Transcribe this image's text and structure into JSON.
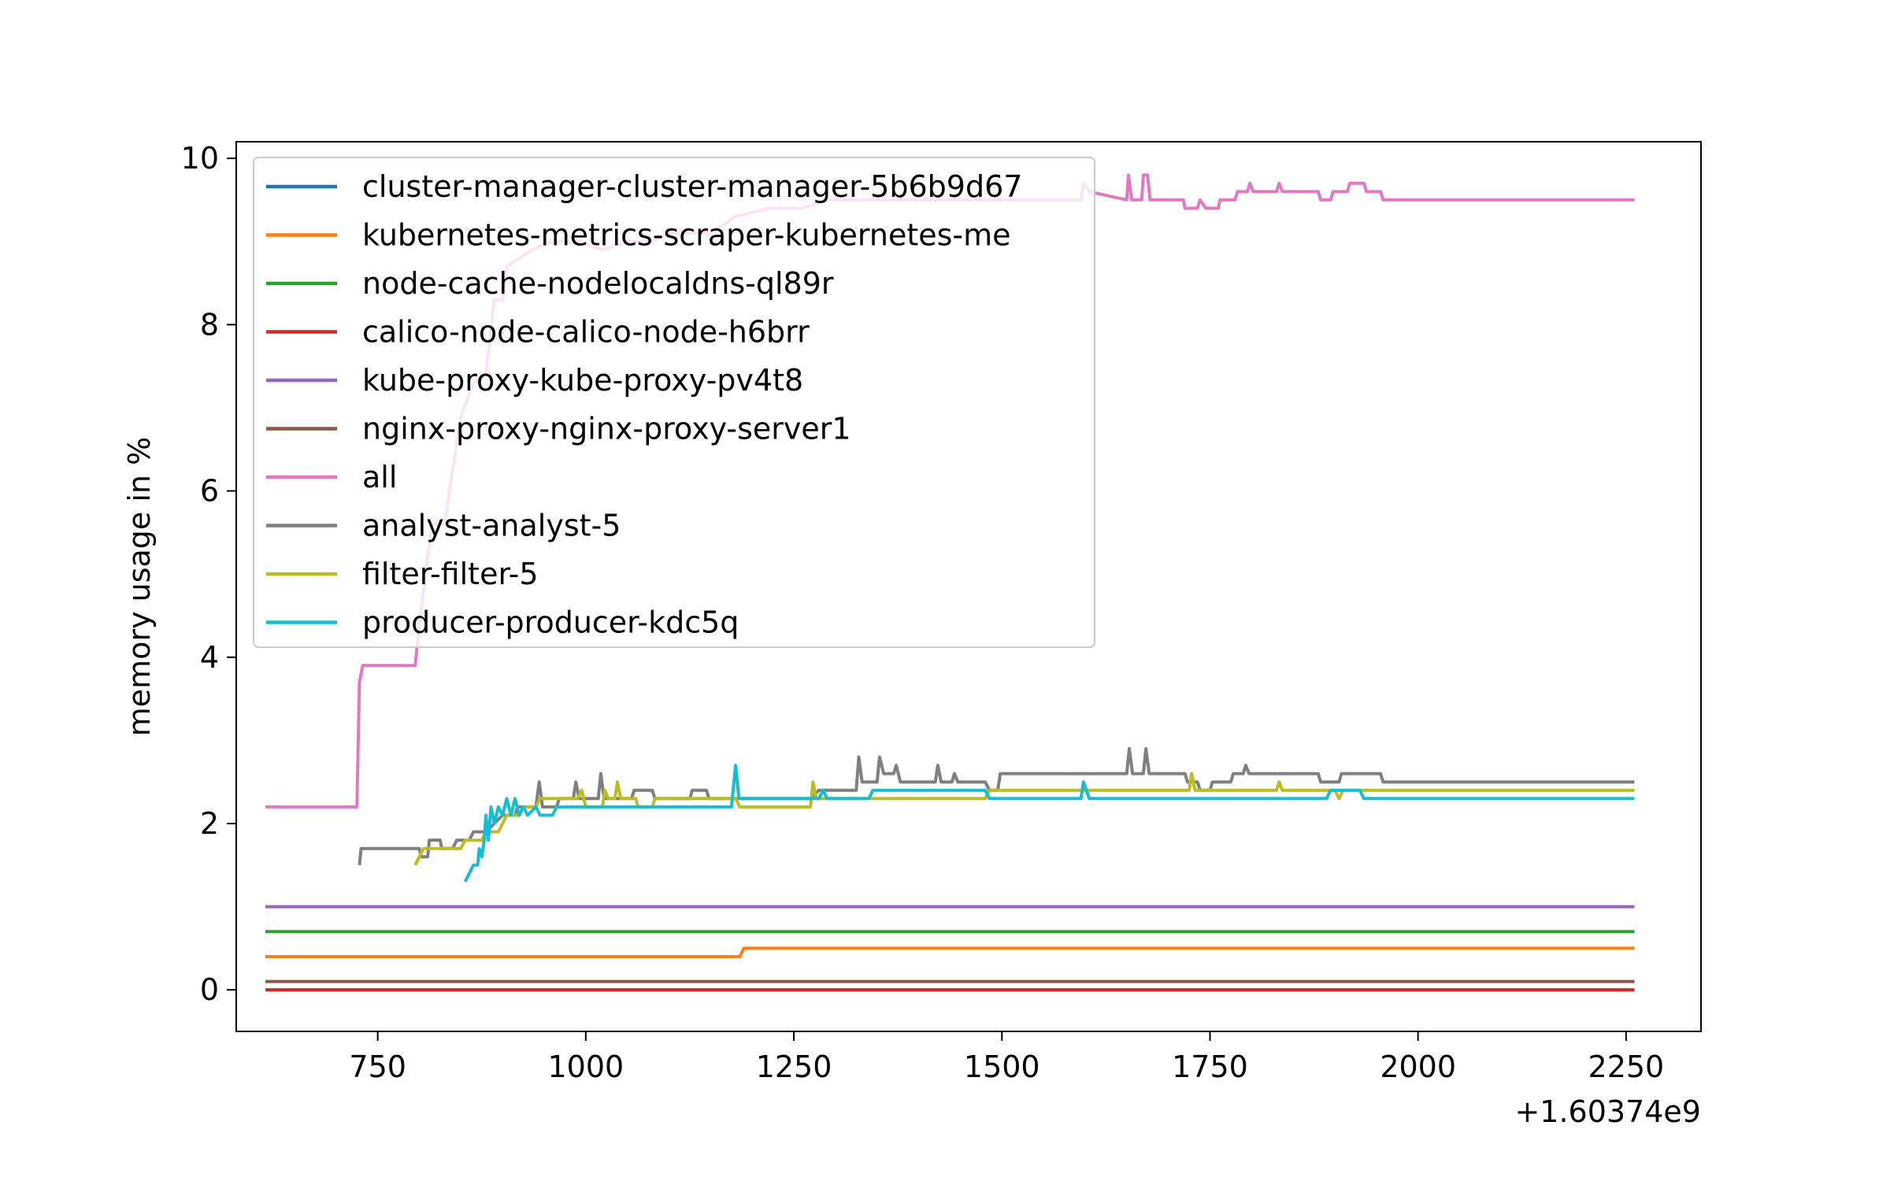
{
  "chart_data": {
    "type": "line",
    "title": "",
    "xlabel": "",
    "ylabel": "memory usage in %",
    "x_offset_label": "+1.60374e9",
    "xlim": [
      580,
      2340
    ],
    "ylim": [
      -0.5,
      10.2
    ],
    "x_ticks": [
      750,
      1000,
      1250,
      1500,
      1750,
      2000,
      2250
    ],
    "y_ticks": [
      0,
      2,
      4,
      6,
      8,
      10
    ],
    "grid": false,
    "legend_placement": "upper left",
    "series": [
      {
        "name": "cluster-manager-cluster-manager-5b6b9d67",
        "color": "#1f77b4",
        "points": [
          [
            615,
            0
          ],
          [
            2260,
            0
          ]
        ]
      },
      {
        "name": "kubernetes-metrics-scraper-kubernetes-me",
        "color": "#ff7f0e",
        "points": [
          [
            615,
            0.4
          ],
          [
            1185,
            0.4
          ],
          [
            1190,
            0.5
          ],
          [
            2260,
            0.5
          ]
        ]
      },
      {
        "name": "node-cache-nodelocaldns-ql89r",
        "color": "#2ca02c",
        "points": [
          [
            615,
            0.7
          ],
          [
            2260,
            0.7
          ]
        ]
      },
      {
        "name": "calico-node-calico-node-h6brr",
        "color": "#d62728",
        "points": [
          [
            615,
            0
          ],
          [
            2260,
            0
          ]
        ]
      },
      {
        "name": "kube-proxy-kube-proxy-pv4t8",
        "color": "#9467bd",
        "points": [
          [
            615,
            1.0
          ],
          [
            2260,
            1.0
          ]
        ]
      },
      {
        "name": "nginx-proxy-nginx-proxy-server1",
        "color": "#8c564b",
        "points": [
          [
            615,
            0.1
          ],
          [
            2260,
            0.1
          ]
        ]
      },
      {
        "name": "all",
        "color": "#e377c2",
        "points": [
          [
            615,
            2.2
          ],
          [
            725,
            2.2
          ],
          [
            728,
            3.7
          ],
          [
            732,
            3.9
          ],
          [
            795,
            3.9
          ],
          [
            800,
            4.4
          ],
          [
            815,
            5.6
          ],
          [
            830,
            5.6
          ],
          [
            850,
            6.9
          ],
          [
            865,
            7.3
          ],
          [
            880,
            7.4
          ],
          [
            890,
            8.3
          ],
          [
            900,
            8.3
          ],
          [
            905,
            8.7
          ],
          [
            920,
            8.8
          ],
          [
            935,
            8.9
          ],
          [
            960,
            9.0
          ],
          [
            990,
            9.0
          ],
          [
            1020,
            8.9
          ],
          [
            1050,
            9.0
          ],
          [
            1080,
            9.0
          ],
          [
            1100,
            9.1
          ],
          [
            1150,
            9.1
          ],
          [
            1180,
            9.3
          ],
          [
            1220,
            9.4
          ],
          [
            1260,
            9.4
          ],
          [
            1290,
            9.5
          ],
          [
            1400,
            9.5
          ],
          [
            1500,
            9.5
          ],
          [
            1595,
            9.5
          ],
          [
            1598,
            9.7
          ],
          [
            1605,
            9.6
          ],
          [
            1650,
            9.5
          ],
          [
            1652,
            9.8
          ],
          [
            1656,
            9.5
          ],
          [
            1668,
            9.5
          ],
          [
            1670,
            9.8
          ],
          [
            1675,
            9.8
          ],
          [
            1678,
            9.5
          ],
          [
            1718,
            9.5
          ],
          [
            1720,
            9.4
          ],
          [
            1735,
            9.4
          ],
          [
            1738,
            9.5
          ],
          [
            1745,
            9.4
          ],
          [
            1760,
            9.4
          ],
          [
            1762,
            9.5
          ],
          [
            1780,
            9.5
          ],
          [
            1783,
            9.6
          ],
          [
            1795,
            9.6
          ],
          [
            1798,
            9.7
          ],
          [
            1802,
            9.6
          ],
          [
            1830,
            9.6
          ],
          [
            1833,
            9.7
          ],
          [
            1837,
            9.6
          ],
          [
            1880,
            9.6
          ],
          [
            1883,
            9.5
          ],
          [
            1895,
            9.5
          ],
          [
            1898,
            9.6
          ],
          [
            1915,
            9.6
          ],
          [
            1918,
            9.7
          ],
          [
            1935,
            9.7
          ],
          [
            1938,
            9.6
          ],
          [
            1955,
            9.6
          ],
          [
            1958,
            9.5
          ],
          [
            2260,
            9.5
          ]
        ]
      },
      {
        "name": "analyst-analyst-5",
        "color": "#7f7f7f",
        "points": [
          [
            728,
            1.5
          ],
          [
            730,
            1.7
          ],
          [
            800,
            1.7
          ],
          [
            802,
            1.6
          ],
          [
            810,
            1.6
          ],
          [
            812,
            1.8
          ],
          [
            825,
            1.8
          ],
          [
            827,
            1.7
          ],
          [
            840,
            1.7
          ],
          [
            845,
            1.8
          ],
          [
            860,
            1.8
          ],
          [
            865,
            1.9
          ],
          [
            880,
            1.9
          ],
          [
            890,
            2.0
          ],
          [
            900,
            2.1
          ],
          [
            915,
            2.1
          ],
          [
            918,
            2.2
          ],
          [
            940,
            2.2
          ],
          [
            944,
            2.5
          ],
          [
            948,
            2.2
          ],
          [
            965,
            2.2
          ],
          [
            968,
            2.3
          ],
          [
            985,
            2.3
          ],
          [
            988,
            2.5
          ],
          [
            992,
            2.3
          ],
          [
            1015,
            2.3
          ],
          [
            1018,
            2.6
          ],
          [
            1022,
            2.3
          ],
          [
            1055,
            2.3
          ],
          [
            1058,
            2.4
          ],
          [
            1080,
            2.4
          ],
          [
            1083,
            2.3
          ],
          [
            1125,
            2.3
          ],
          [
            1128,
            2.4
          ],
          [
            1145,
            2.4
          ],
          [
            1148,
            2.3
          ],
          [
            1180,
            2.3
          ],
          [
            1270,
            2.3
          ],
          [
            1280,
            2.4
          ],
          [
            1300,
            2.4
          ],
          [
            1325,
            2.4
          ],
          [
            1328,
            2.8
          ],
          [
            1332,
            2.5
          ],
          [
            1350,
            2.5
          ],
          [
            1353,
            2.8
          ],
          [
            1358,
            2.6
          ],
          [
            1370,
            2.6
          ],
          [
            1373,
            2.7
          ],
          [
            1378,
            2.5
          ],
          [
            1420,
            2.5
          ],
          [
            1423,
            2.7
          ],
          [
            1427,
            2.5
          ],
          [
            1440,
            2.5
          ],
          [
            1443,
            2.6
          ],
          [
            1447,
            2.5
          ],
          [
            1480,
            2.5
          ],
          [
            1485,
            2.4
          ],
          [
            1495,
            2.4
          ],
          [
            1498,
            2.6
          ],
          [
            1650,
            2.6
          ],
          [
            1653,
            2.9
          ],
          [
            1657,
            2.6
          ],
          [
            1670,
            2.6
          ],
          [
            1673,
            2.9
          ],
          [
            1677,
            2.6
          ],
          [
            1720,
            2.6
          ],
          [
            1723,
            2.5
          ],
          [
            1735,
            2.5
          ],
          [
            1738,
            2.4
          ],
          [
            1750,
            2.4
          ],
          [
            1753,
            2.5
          ],
          [
            1775,
            2.5
          ],
          [
            1778,
            2.6
          ],
          [
            1790,
            2.6
          ],
          [
            1793,
            2.7
          ],
          [
            1797,
            2.6
          ],
          [
            1880,
            2.6
          ],
          [
            1883,
            2.5
          ],
          [
            1905,
            2.5
          ],
          [
            1908,
            2.6
          ],
          [
            1955,
            2.6
          ],
          [
            1958,
            2.5
          ],
          [
            2260,
            2.5
          ]
        ]
      },
      {
        "name": "filter-filter-5",
        "color": "#bcbd22",
        "points": [
          [
            795,
            1.5
          ],
          [
            800,
            1.6
          ],
          [
            805,
            1.7
          ],
          [
            850,
            1.7
          ],
          [
            855,
            1.8
          ],
          [
            875,
            1.8
          ],
          [
            880,
            1.9
          ],
          [
            895,
            1.9
          ],
          [
            900,
            2.0
          ],
          [
            905,
            2.1
          ],
          [
            920,
            2.1
          ],
          [
            925,
            2.2
          ],
          [
            940,
            2.2
          ],
          [
            945,
            2.3
          ],
          [
            990,
            2.3
          ],
          [
            995,
            2.4
          ],
          [
            1000,
            2.2
          ],
          [
            1020,
            2.2
          ],
          [
            1023,
            2.4
          ],
          [
            1027,
            2.3
          ],
          [
            1035,
            2.3
          ],
          [
            1038,
            2.5
          ],
          [
            1042,
            2.3
          ],
          [
            1060,
            2.3
          ],
          [
            1063,
            2.2
          ],
          [
            1080,
            2.2
          ],
          [
            1083,
            2.3
          ],
          [
            1180,
            2.3
          ],
          [
            1185,
            2.2
          ],
          [
            1270,
            2.2
          ],
          [
            1273,
            2.5
          ],
          [
            1277,
            2.3
          ],
          [
            1290,
            2.3
          ],
          [
            1300,
            2.3
          ],
          [
            1480,
            2.3
          ],
          [
            1485,
            2.4
          ],
          [
            1725,
            2.4
          ],
          [
            1728,
            2.6
          ],
          [
            1732,
            2.4
          ],
          [
            1830,
            2.4
          ],
          [
            1833,
            2.5
          ],
          [
            1837,
            2.4
          ],
          [
            1900,
            2.4
          ],
          [
            1905,
            2.3
          ],
          [
            1910,
            2.4
          ],
          [
            2260,
            2.4
          ]
        ]
      },
      {
        "name": "producer-producer-kdc5q",
        "color": "#17becf",
        "points": [
          [
            855,
            1.3
          ],
          [
            860,
            1.4
          ],
          [
            865,
            1.5
          ],
          [
            870,
            1.5
          ],
          [
            872,
            1.7
          ],
          [
            875,
            1.6
          ],
          [
            878,
            1.8
          ],
          [
            880,
            2.1
          ],
          [
            883,
            1.8
          ],
          [
            886,
            2.2
          ],
          [
            890,
            2.0
          ],
          [
            895,
            2.2
          ],
          [
            900,
            2.1
          ],
          [
            905,
            2.3
          ],
          [
            910,
            2.1
          ],
          [
            915,
            2.3
          ],
          [
            920,
            2.1
          ],
          [
            925,
            2.2
          ],
          [
            930,
            2.1
          ],
          [
            940,
            2.2
          ],
          [
            945,
            2.1
          ],
          [
            960,
            2.1
          ],
          [
            965,
            2.2
          ],
          [
            1175,
            2.2
          ],
          [
            1180,
            2.7
          ],
          [
            1184,
            2.3
          ],
          [
            1280,
            2.3
          ],
          [
            1285,
            2.4
          ],
          [
            1290,
            2.3
          ],
          [
            1340,
            2.3
          ],
          [
            1345,
            2.4
          ],
          [
            1480,
            2.4
          ],
          [
            1485,
            2.3
          ],
          [
            1595,
            2.3
          ],
          [
            1598,
            2.5
          ],
          [
            1605,
            2.3
          ],
          [
            1890,
            2.3
          ],
          [
            1895,
            2.4
          ],
          [
            1930,
            2.4
          ],
          [
            1935,
            2.3
          ],
          [
            2260,
            2.3
          ]
        ]
      }
    ]
  }
}
